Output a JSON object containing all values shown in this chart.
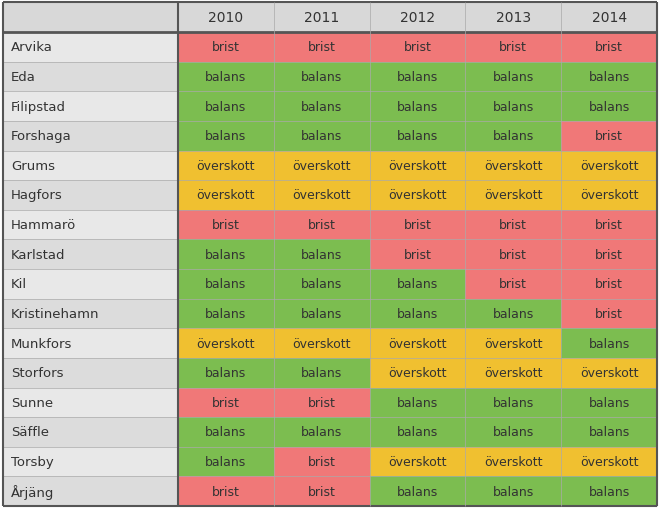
{
  "columns": [
    "2010",
    "2011",
    "2012",
    "2013",
    "2014"
  ],
  "rows": [
    {
      "name": "Arvika",
      "values": [
        "brist",
        "brist",
        "brist",
        "brist",
        "brist"
      ]
    },
    {
      "name": "Eda",
      "values": [
        "balans",
        "balans",
        "balans",
        "balans",
        "balans"
      ]
    },
    {
      "name": "Filipstad",
      "values": [
        "balans",
        "balans",
        "balans",
        "balans",
        "balans"
      ]
    },
    {
      "name": "Forshaga",
      "values": [
        "balans",
        "balans",
        "balans",
        "balans",
        "brist"
      ]
    },
    {
      "name": "Grums",
      "values": [
        "överskott",
        "överskott",
        "överskott",
        "överskott",
        "överskott"
      ]
    },
    {
      "name": "Hagfors",
      "values": [
        "överskott",
        "överskott",
        "överskott",
        "överskott",
        "överskott"
      ]
    },
    {
      "name": "Hammarö",
      "values": [
        "brist",
        "brist",
        "brist",
        "brist",
        "brist"
      ]
    },
    {
      "name": "Karlstad",
      "values": [
        "balans",
        "balans",
        "brist",
        "brist",
        "brist"
      ]
    },
    {
      "name": "Kil",
      "values": [
        "balans",
        "balans",
        "balans",
        "brist",
        "brist"
      ]
    },
    {
      "name": "Kristinehamn",
      "values": [
        "balans",
        "balans",
        "balans",
        "balans",
        "brist"
      ]
    },
    {
      "name": "Munkfors",
      "values": [
        "överskott",
        "överskott",
        "överskott",
        "överskott",
        "balans"
      ]
    },
    {
      "name": "Storfors",
      "values": [
        "balans",
        "balans",
        "överskott",
        "överskott",
        "överskott"
      ]
    },
    {
      "name": "Sunne",
      "values": [
        "brist",
        "brist",
        "balans",
        "balans",
        "balans"
      ]
    },
    {
      "name": "Säffle",
      "values": [
        "balans",
        "balans",
        "balans",
        "balans",
        "balans"
      ]
    },
    {
      "name": "Torsby",
      "values": [
        "balans",
        "brist",
        "överskott",
        "överskott",
        "överskott"
      ]
    },
    {
      "name": "Årjäng",
      "values": [
        "brist",
        "brist",
        "balans",
        "balans",
        "balans"
      ]
    }
  ],
  "color_map": {
    "brist": "#f07878",
    "balans": "#7cbd50",
    "överskott": "#f0c030"
  },
  "header_bg": "#d8d8d8",
  "row_name_bg_odd": "#e8e8e8",
  "row_name_bg_even": "#dcdcdc",
  "border_color": "#aaaaaa",
  "thick_border_color": "#555555",
  "header_text_color": "#333333",
  "cell_text_color": "#333333",
  "figsize": [
    6.6,
    5.1
  ],
  "dpi": 100
}
